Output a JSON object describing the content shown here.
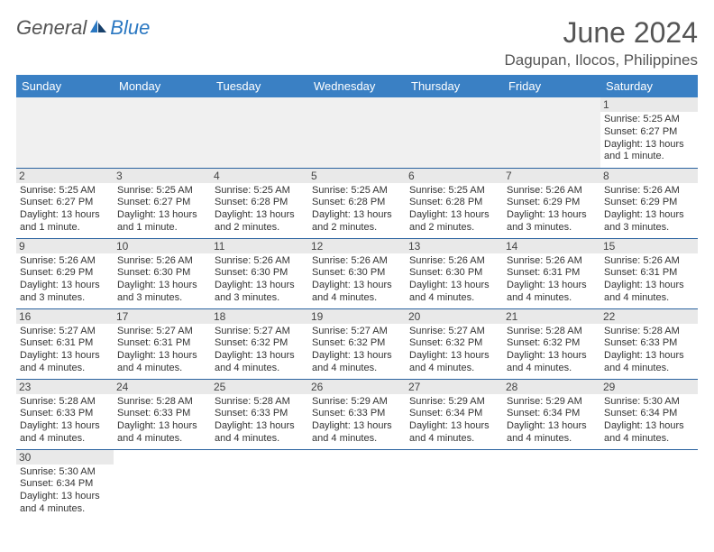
{
  "logo": {
    "general": "General",
    "blue": "Blue"
  },
  "title": "June 2024",
  "location": "Dagupan, Ilocos, Philippines",
  "colors": {
    "header_bg": "#3a80c4",
    "header_text": "#ffffff",
    "daynum_bg": "#e9e9e9",
    "cell_border": "#2b63a0",
    "title_color": "#555555",
    "logo_accent": "#2b78c2"
  },
  "fonts": {
    "title_size": 32,
    "location_size": 17,
    "dayhead_size": 13,
    "cell_size": 11
  },
  "cols": [
    "Sunday",
    "Monday",
    "Tuesday",
    "Wednesday",
    "Thursday",
    "Friday",
    "Saturday"
  ],
  "weeks": [
    [
      null,
      null,
      null,
      null,
      null,
      null,
      {
        "n": "1",
        "sr": "Sunrise: 5:25 AM",
        "ss": "Sunset: 6:27 PM",
        "d1": "Daylight: 13 hours",
        "d2": "and 1 minute."
      }
    ],
    [
      {
        "n": "2",
        "sr": "Sunrise: 5:25 AM",
        "ss": "Sunset: 6:27 PM",
        "d1": "Daylight: 13 hours",
        "d2": "and 1 minute."
      },
      {
        "n": "3",
        "sr": "Sunrise: 5:25 AM",
        "ss": "Sunset: 6:27 PM",
        "d1": "Daylight: 13 hours",
        "d2": "and 1 minute."
      },
      {
        "n": "4",
        "sr": "Sunrise: 5:25 AM",
        "ss": "Sunset: 6:28 PM",
        "d1": "Daylight: 13 hours",
        "d2": "and 2 minutes."
      },
      {
        "n": "5",
        "sr": "Sunrise: 5:25 AM",
        "ss": "Sunset: 6:28 PM",
        "d1": "Daylight: 13 hours",
        "d2": "and 2 minutes."
      },
      {
        "n": "6",
        "sr": "Sunrise: 5:25 AM",
        "ss": "Sunset: 6:28 PM",
        "d1": "Daylight: 13 hours",
        "d2": "and 2 minutes."
      },
      {
        "n": "7",
        "sr": "Sunrise: 5:26 AM",
        "ss": "Sunset: 6:29 PM",
        "d1": "Daylight: 13 hours",
        "d2": "and 3 minutes."
      },
      {
        "n": "8",
        "sr": "Sunrise: 5:26 AM",
        "ss": "Sunset: 6:29 PM",
        "d1": "Daylight: 13 hours",
        "d2": "and 3 minutes."
      }
    ],
    [
      {
        "n": "9",
        "sr": "Sunrise: 5:26 AM",
        "ss": "Sunset: 6:29 PM",
        "d1": "Daylight: 13 hours",
        "d2": "and 3 minutes."
      },
      {
        "n": "10",
        "sr": "Sunrise: 5:26 AM",
        "ss": "Sunset: 6:30 PM",
        "d1": "Daylight: 13 hours",
        "d2": "and 3 minutes."
      },
      {
        "n": "11",
        "sr": "Sunrise: 5:26 AM",
        "ss": "Sunset: 6:30 PM",
        "d1": "Daylight: 13 hours",
        "d2": "and 3 minutes."
      },
      {
        "n": "12",
        "sr": "Sunrise: 5:26 AM",
        "ss": "Sunset: 6:30 PM",
        "d1": "Daylight: 13 hours",
        "d2": "and 4 minutes."
      },
      {
        "n": "13",
        "sr": "Sunrise: 5:26 AM",
        "ss": "Sunset: 6:30 PM",
        "d1": "Daylight: 13 hours",
        "d2": "and 4 minutes."
      },
      {
        "n": "14",
        "sr": "Sunrise: 5:26 AM",
        "ss": "Sunset: 6:31 PM",
        "d1": "Daylight: 13 hours",
        "d2": "and 4 minutes."
      },
      {
        "n": "15",
        "sr": "Sunrise: 5:26 AM",
        "ss": "Sunset: 6:31 PM",
        "d1": "Daylight: 13 hours",
        "d2": "and 4 minutes."
      }
    ],
    [
      {
        "n": "16",
        "sr": "Sunrise: 5:27 AM",
        "ss": "Sunset: 6:31 PM",
        "d1": "Daylight: 13 hours",
        "d2": "and 4 minutes."
      },
      {
        "n": "17",
        "sr": "Sunrise: 5:27 AM",
        "ss": "Sunset: 6:31 PM",
        "d1": "Daylight: 13 hours",
        "d2": "and 4 minutes."
      },
      {
        "n": "18",
        "sr": "Sunrise: 5:27 AM",
        "ss": "Sunset: 6:32 PM",
        "d1": "Daylight: 13 hours",
        "d2": "and 4 minutes."
      },
      {
        "n": "19",
        "sr": "Sunrise: 5:27 AM",
        "ss": "Sunset: 6:32 PM",
        "d1": "Daylight: 13 hours",
        "d2": "and 4 minutes."
      },
      {
        "n": "20",
        "sr": "Sunrise: 5:27 AM",
        "ss": "Sunset: 6:32 PM",
        "d1": "Daylight: 13 hours",
        "d2": "and 4 minutes."
      },
      {
        "n": "21",
        "sr": "Sunrise: 5:28 AM",
        "ss": "Sunset: 6:32 PM",
        "d1": "Daylight: 13 hours",
        "d2": "and 4 minutes."
      },
      {
        "n": "22",
        "sr": "Sunrise: 5:28 AM",
        "ss": "Sunset: 6:33 PM",
        "d1": "Daylight: 13 hours",
        "d2": "and 4 minutes."
      }
    ],
    [
      {
        "n": "23",
        "sr": "Sunrise: 5:28 AM",
        "ss": "Sunset: 6:33 PM",
        "d1": "Daylight: 13 hours",
        "d2": "and 4 minutes."
      },
      {
        "n": "24",
        "sr": "Sunrise: 5:28 AM",
        "ss": "Sunset: 6:33 PM",
        "d1": "Daylight: 13 hours",
        "d2": "and 4 minutes."
      },
      {
        "n": "25",
        "sr": "Sunrise: 5:28 AM",
        "ss": "Sunset: 6:33 PM",
        "d1": "Daylight: 13 hours",
        "d2": "and 4 minutes."
      },
      {
        "n": "26",
        "sr": "Sunrise: 5:29 AM",
        "ss": "Sunset: 6:33 PM",
        "d1": "Daylight: 13 hours",
        "d2": "and 4 minutes."
      },
      {
        "n": "27",
        "sr": "Sunrise: 5:29 AM",
        "ss": "Sunset: 6:34 PM",
        "d1": "Daylight: 13 hours",
        "d2": "and 4 minutes."
      },
      {
        "n": "28",
        "sr": "Sunrise: 5:29 AM",
        "ss": "Sunset: 6:34 PM",
        "d1": "Daylight: 13 hours",
        "d2": "and 4 minutes."
      },
      {
        "n": "29",
        "sr": "Sunrise: 5:30 AM",
        "ss": "Sunset: 6:34 PM",
        "d1": "Daylight: 13 hours",
        "d2": "and 4 minutes."
      }
    ],
    [
      {
        "n": "30",
        "sr": "Sunrise: 5:30 AM",
        "ss": "Sunset: 6:34 PM",
        "d1": "Daylight: 13 hours",
        "d2": "and 4 minutes."
      },
      null,
      null,
      null,
      null,
      null,
      null
    ]
  ]
}
